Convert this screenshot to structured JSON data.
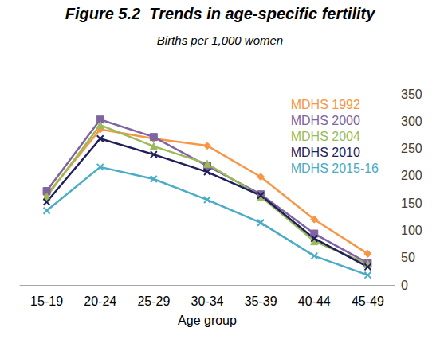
{
  "chart_data": {
    "type": "line",
    "title": "Figure 5.2  Trends in age-specific fertility",
    "subtitle": "Births per 1,000 women",
    "x_label": "Age group",
    "categories": [
      "15-19",
      "20-24",
      "25-29",
      "30-34",
      "35-39",
      "40-44",
      "45-49"
    ],
    "series": [
      {
        "name": "MDHS 1992",
        "color": "#f79646",
        "marker": "diamond",
        "values": [
          165,
          285,
          268,
          255,
          198,
          120,
          57
        ]
      },
      {
        "name": "MDHS 2000",
        "color": "#8064a2",
        "marker": "square",
        "values": [
          172,
          303,
          271,
          218,
          166,
          94,
          40
        ]
      },
      {
        "name": "MDHS 2004",
        "color": "#9bbb59",
        "marker": "triangle",
        "values": [
          162,
          293,
          254,
          222,
          162,
          80,
          38
        ]
      },
      {
        "name": "MDHS 2010",
        "color": "#1f1f5c",
        "marker": "x",
        "values": [
          152,
          268,
          239,
          207,
          164,
          85,
          33
        ]
      },
      {
        "name": "MDHS 2015-16",
        "color": "#4bacc6",
        "marker": "x",
        "values": [
          136,
          216,
          194,
          156,
          114,
          53,
          18
        ]
      }
    ],
    "ylim": [
      0,
      350
    ],
    "yticks": [
      0,
      50,
      100,
      150,
      200,
      250,
      300,
      350
    ],
    "grid": false,
    "legend": "upper right"
  }
}
